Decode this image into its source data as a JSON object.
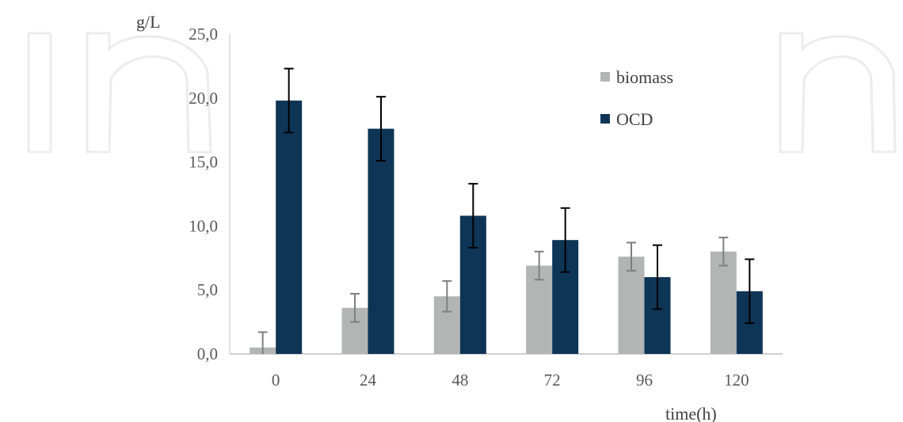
{
  "chart_data": {
    "type": "bar",
    "ylabel": "g/L",
    "xlabel": "time(h)",
    "ylim": [
      0,
      25
    ],
    "yticks": [
      "0,0",
      "5,0",
      "10,0",
      "15,0",
      "20,0",
      "25,0"
    ],
    "categories": [
      "0",
      "24",
      "48",
      "72",
      "96",
      "120"
    ],
    "grid": false,
    "legend_position": "top-right",
    "series": [
      {
        "name": "biomass",
        "color": "#b3b5b5",
        "error_color": "#7f7f7f",
        "values": [
          0.5,
          3.6,
          4.5,
          6.9,
          7.6,
          8.0
        ],
        "errors": [
          1.2,
          1.1,
          1.2,
          1.1,
          1.1,
          1.1
        ]
      },
      {
        "name": "OCD",
        "color": "#0e3556",
        "error_color": "#000000",
        "values": [
          19.8,
          17.6,
          10.8,
          8.9,
          6.0,
          4.9
        ],
        "errors": [
          2.5,
          2.5,
          2.5,
          2.5,
          2.5,
          2.5
        ]
      }
    ]
  }
}
